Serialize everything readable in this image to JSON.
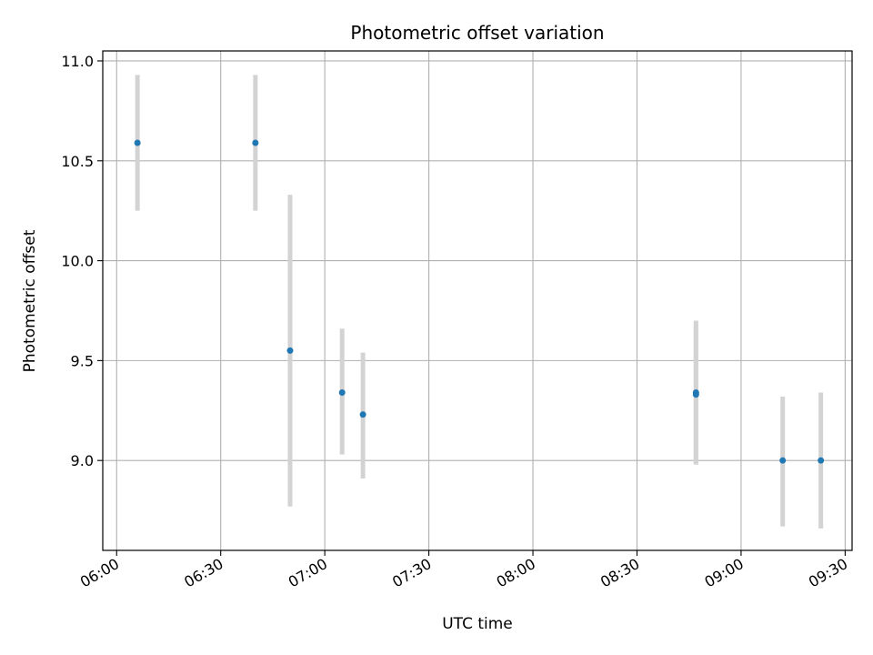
{
  "chart_data": {
    "type": "scatter",
    "title": "Photometric offset variation",
    "xlabel": "UTC time",
    "ylabel": "Photometric offset",
    "xlim": [
      "05:56",
      "09:32"
    ],
    "ylim": [
      8.55,
      11.05
    ],
    "x_ticks": [
      "06:00",
      "06:30",
      "07:00",
      "07:30",
      "08:00",
      "08:30",
      "09:00",
      "09:30"
    ],
    "y_ticks": [
      "9.0",
      "9.5",
      "10.0",
      "10.5",
      "11.0"
    ],
    "grid": true,
    "point_color": "#1f77b4",
    "errorbar_color": "#d3d3d3",
    "points": [
      {
        "x": "06:06",
        "y": 10.59,
        "yerr_low": 10.25,
        "yerr_high": 10.93
      },
      {
        "x": "06:40",
        "y": 10.59,
        "yerr_low": 10.25,
        "yerr_high": 10.93
      },
      {
        "x": "06:50",
        "y": 9.55,
        "yerr_low": 8.77,
        "yerr_high": 10.33
      },
      {
        "x": "07:05",
        "y": 9.34,
        "yerr_low": 9.03,
        "yerr_high": 9.66
      },
      {
        "x": "07:11",
        "y": 9.23,
        "yerr_low": 8.91,
        "yerr_high": 9.54
      },
      {
        "x": "08:47",
        "y": 9.34,
        "yerr_low": 8.98,
        "yerr_high": 9.7
      },
      {
        "x": "08:47",
        "y": 9.33,
        "yerr_low": 8.98,
        "yerr_high": 9.68
      },
      {
        "x": "09:12",
        "y": 9.0,
        "yerr_low": 8.67,
        "yerr_high": 9.32
      },
      {
        "x": "09:23",
        "y": 9.0,
        "yerr_low": 8.66,
        "yerr_high": 9.34
      }
    ]
  }
}
